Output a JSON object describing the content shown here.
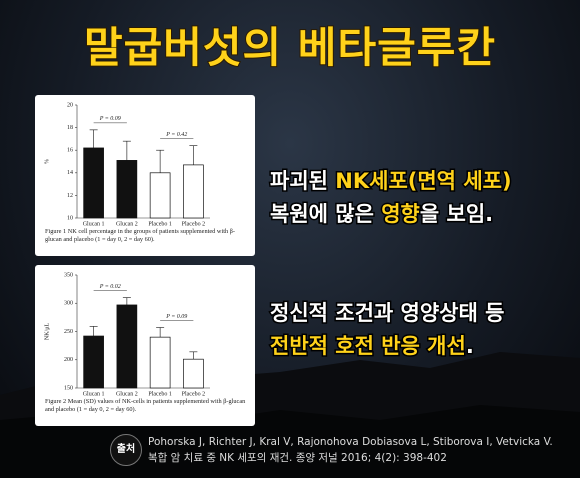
{
  "header": {
    "title": "말굽버섯의 베타글루칸"
  },
  "chart_data": [
    {
      "type": "bar",
      "categories": [
        "Glucan 1",
        "Glucan 2",
        "Placebo 1",
        "Placebo 2"
      ],
      "values": [
        16.2,
        15.1,
        14.0,
        14.7
      ],
      "errors": [
        1.6,
        1.7,
        2.0,
        1.7
      ],
      "colors": [
        "#111111",
        "#111111",
        "#ffffff",
        "#ffffff"
      ],
      "ylabel": "%",
      "ylim": [
        10,
        20
      ],
      "yticks": [
        10,
        12,
        14,
        16,
        18,
        20
      ],
      "annotations": [
        "P = 0.09",
        "P = 0.42"
      ],
      "caption": "Figure 1 NK cell percentage in the groups of patients supplemented with β-glucan and placebo (1 = day 0, 2 = day 60)."
    },
    {
      "type": "bar",
      "categories": [
        "Glucan 1",
        "Glucan 2",
        "Placebo 1",
        "Placebo 2"
      ],
      "values": [
        242,
        297,
        240,
        201
      ],
      "errors": [
        17,
        13,
        17,
        13
      ],
      "colors": [
        "#111111",
        "#111111",
        "#ffffff",
        "#ffffff"
      ],
      "ylabel": "NK/μL",
      "ylim": [
        150,
        350
      ],
      "yticks": [
        150,
        200,
        250,
        300,
        350
      ],
      "annotations": [
        "P = 0.02",
        "P = 0.09"
      ],
      "caption": "Figure 2 Mean (SD) values of NK-cells in patients supplemented with β-glucan and placebo (1 = day 0, 2 = day 60)."
    }
  ],
  "text_blocks": [
    [
      [
        {
          "text": "파괴된 ",
          "highlight": false
        },
        {
          "text": "NK세포(면역 세포)",
          "highlight": true
        }
      ],
      [
        {
          "text": "복원에 많은 ",
          "highlight": false
        },
        {
          "text": "영향",
          "highlight": true
        },
        {
          "text": "을 보임.",
          "highlight": false
        }
      ]
    ],
    [
      [
        {
          "text": "정신적 조건과 영양상태 등",
          "highlight": false
        }
      ],
      [
        {
          "text": "전반적 호전 반응 개선",
          "highlight": true
        },
        {
          "text": ".",
          "highlight": false
        }
      ]
    ]
  ],
  "source": {
    "badge": "출처",
    "lines": [
      "Pohorska J, Richter J, Kral V, Rajonohova Dobiasova L, Stiborova I, Vetvicka V.",
      "복합 암 치료 중 NK 세포의 재건. 종양 저널 2016; 4(2): 398-402"
    ]
  }
}
